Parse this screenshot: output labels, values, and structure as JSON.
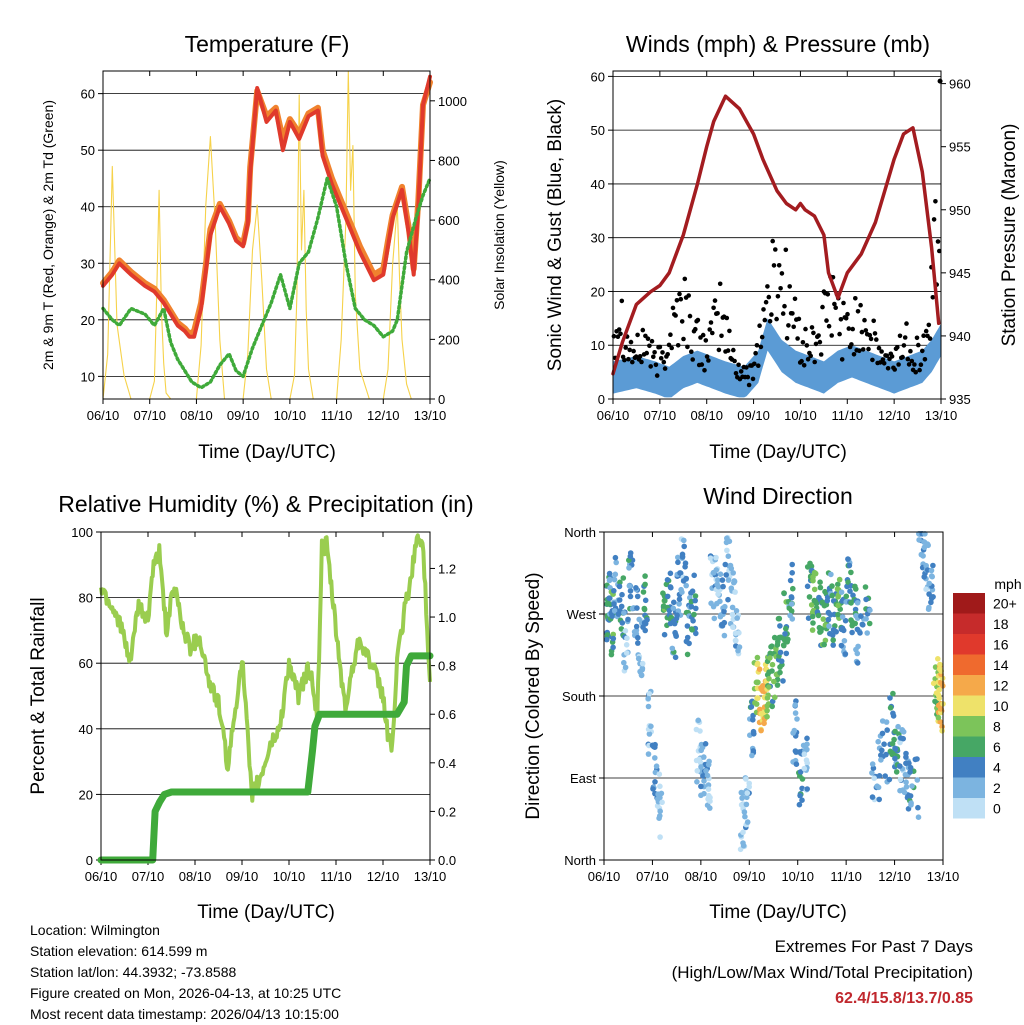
{
  "colors": {
    "temp2m": "#e03a2c",
    "temp9m": "#f0822e",
    "dewpoint": "#3faa3a",
    "solar": "#f6d24a",
    "wind": "#5b9bd5",
    "gust": "#000000",
    "pressure": "#a31c20",
    "rh": "#9acd4f",
    "precip": "#3faa3a"
  },
  "chart_data": [
    {
      "type": "line",
      "id": "temperature",
      "title": "Temperature (F)",
      "xlabel": "Time (Day/UTC)",
      "ylabel": "2m & 9m T (Red, Orange) & 2m Td (Green)",
      "y2label": "Solar Insolation (Yellow)",
      "x_ticks": [
        "06/10",
        "07/10",
        "08/10",
        "09/10",
        "10/10",
        "11/10",
        "12/10",
        "13/10"
      ],
      "xlim": [
        0,
        7
      ],
      "ylim": [
        6,
        64
      ],
      "y_ticks": [
        10,
        20,
        30,
        40,
        50,
        60
      ],
      "y2lim": [
        0,
        1100
      ],
      "y2_ticks": [
        0,
        200,
        400,
        600,
        800,
        1000
      ],
      "series": [
        {
          "name": "2m T",
          "color_key": "temp2m",
          "x": [
            0,
            0.2,
            0.35,
            0.6,
            0.9,
            1.1,
            1.3,
            1.45,
            1.6,
            1.75,
            1.85,
            1.95,
            2.1,
            2.3,
            2.5,
            2.7,
            2.85,
            3.0,
            3.1,
            3.15,
            3.3,
            3.5,
            3.7,
            3.85,
            4.0,
            4.2,
            4.4,
            4.6,
            4.7,
            4.9,
            5.2,
            5.5,
            5.8,
            6.0,
            6.1,
            6.2,
            6.4,
            6.55,
            6.65,
            6.75,
            6.85,
            7.0
          ],
          "y": [
            26,
            28,
            30,
            28,
            26,
            25,
            23,
            21,
            19,
            18,
            17,
            17,
            22,
            35,
            40,
            37,
            34,
            33,
            37,
            46,
            61,
            55,
            57,
            50,
            55,
            52,
            56,
            57,
            49,
            44,
            38,
            32,
            27,
            28,
            33,
            38,
            43,
            35,
            28,
            40,
            58,
            63
          ]
        },
        {
          "name": "9m T",
          "color_key": "temp9m",
          "x": [
            0,
            0.2,
            0.35,
            0.6,
            0.9,
            1.1,
            1.3,
            1.45,
            1.6,
            1.75,
            1.85,
            1.95,
            2.1,
            2.3,
            2.5,
            2.7,
            2.85,
            3.0,
            3.1,
            3.15,
            3.3,
            3.5,
            3.7,
            3.85,
            4.0,
            4.2,
            4.4,
            4.6,
            4.7,
            4.9,
            5.2,
            5.5,
            5.8,
            6.0,
            6.1,
            6.2,
            6.4,
            6.55,
            6.65,
            6.75,
            6.85,
            7.0
          ],
          "y": [
            26.5,
            28.5,
            30.5,
            28.5,
            26.5,
            25.5,
            23.5,
            21.5,
            19.5,
            18.5,
            17.5,
            18,
            23,
            36,
            40.5,
            37.5,
            34.5,
            33.5,
            37.5,
            47,
            60.5,
            56,
            57.5,
            52,
            55.5,
            53,
            56.5,
            57.5,
            50,
            45,
            39,
            33,
            28,
            29,
            34,
            38.5,
            43.5,
            36,
            29,
            41,
            58,
            62
          ]
        },
        {
          "name": "2m Td",
          "color_key": "dewpoint",
          "x": [
            0,
            0.2,
            0.35,
            0.6,
            0.9,
            1.1,
            1.3,
            1.45,
            1.6,
            1.75,
            1.9,
            2.1,
            2.3,
            2.5,
            2.7,
            2.85,
            3.0,
            3.2,
            3.4,
            3.6,
            3.8,
            4.0,
            4.2,
            4.4,
            4.6,
            4.8,
            5.0,
            5.2,
            5.4,
            5.6,
            5.8,
            6.0,
            6.2,
            6.3,
            6.5,
            6.7,
            6.85,
            7.0
          ],
          "y": [
            22,
            20,
            19,
            22,
            21,
            19,
            22,
            16,
            13,
            11,
            9,
            8,
            9,
            12,
            14,
            11,
            10,
            15,
            19,
            23,
            28,
            22,
            30,
            32,
            38,
            45,
            40,
            30,
            22,
            20,
            19,
            17,
            18,
            20,
            32,
            38,
            42,
            45
          ]
        },
        {
          "name": "Solar Insolation",
          "color_key": "solar",
          "axis": "y2",
          "x": [
            0,
            0.1,
            0.2,
            0.3,
            0.45,
            0.6,
            0.8,
            1.0,
            1.1,
            1.15,
            1.2,
            1.25,
            1.3,
            1.35,
            1.45,
            1.6,
            1.8,
            2.0,
            2.1,
            2.2,
            2.3,
            2.4,
            2.5,
            2.6,
            2.8,
            3.0,
            3.1,
            3.2,
            3.3,
            3.4,
            3.5,
            3.6,
            3.8,
            4.0,
            4.1,
            4.15,
            4.2,
            4.25,
            4.3,
            4.35,
            4.4,
            4.5,
            4.7,
            5.0,
            5.1,
            5.2,
            5.25,
            5.3,
            5.35,
            5.4,
            5.5,
            5.7,
            6.0,
            6.1,
            6.2,
            6.3,
            6.35,
            6.4,
            6.5,
            6.6,
            6.8,
            7.0
          ],
          "y": [
            0,
            150,
            780,
            250,
            80,
            0,
            0,
            0,
            60,
            350,
            700,
            300,
            120,
            20,
            0,
            0,
            0,
            0,
            180,
            650,
            880,
            600,
            200,
            0,
            0,
            0,
            150,
            500,
            650,
            400,
            100,
            0,
            0,
            0,
            80,
            350,
            1020,
            500,
            700,
            300,
            100,
            0,
            0,
            0,
            200,
            600,
            1100,
            700,
            850,
            350,
            100,
            0,
            0,
            100,
            450,
            650,
            400,
            200,
            50,
            0,
            0,
            0
          ]
        }
      ]
    },
    {
      "type": "scatter",
      "id": "winds",
      "title": "Winds (mph) & Pressure (mb)",
      "xlabel": "Time (Day/UTC)",
      "ylabel": "Sonic Wind & Gust (Blue, Black)",
      "y2label": "Station Pressure (Maroon)",
      "x_ticks": [
        "06/10",
        "07/10",
        "08/10",
        "09/10",
        "10/10",
        "11/10",
        "12/10",
        "13/10"
      ],
      "xlim": [
        0,
        7
      ],
      "ylim": [
        0,
        61
      ],
      "y_ticks": [
        0,
        10,
        20,
        30,
        40,
        50,
        60
      ],
      "y2lim": [
        935,
        961
      ],
      "y2_ticks": [
        935,
        940,
        945,
        950,
        955,
        960
      ],
      "series": [
        {
          "name": "Sonic Wind",
          "color_key": "wind",
          "x": [
            0,
            0.5,
            0.9,
            1.2,
            1.5,
            1.8,
            2.1,
            2.4,
            2.8,
            3.1,
            3.3,
            3.6,
            3.9,
            4.2,
            4.5,
            4.8,
            5.1,
            5.4,
            5.7,
            6.0,
            6.3,
            6.6,
            6.8,
            7.0
          ],
          "y": [
            4,
            5,
            4,
            3,
            5,
            6,
            5,
            4,
            3,
            6,
            12,
            8,
            6,
            5,
            4,
            6,
            7,
            6,
            5,
            4,
            5,
            6,
            8,
            11
          ]
        },
        {
          "name": "Gust",
          "color_key": "gust",
          "x": [
            0,
            0.15,
            0.3,
            0.5,
            0.7,
            0.9,
            1.1,
            1.3,
            1.5,
            1.7,
            1.9,
            2.1,
            2.3,
            2.5,
            2.7,
            2.9,
            3.1,
            3.3,
            3.5,
            3.7,
            3.9,
            4.1,
            4.3,
            4.5,
            4.7,
            4.9,
            5.1,
            5.3,
            5.5,
            5.7,
            5.9,
            6.1,
            6.3,
            6.5,
            6.7,
            6.85,
            7.0
          ],
          "y": [
            12,
            17,
            10,
            8,
            11,
            6,
            9,
            14,
            18,
            12,
            9,
            11,
            16,
            9,
            5,
            4,
            10,
            18,
            24,
            20,
            13,
            9,
            10,
            14,
            18,
            13,
            12,
            16,
            11,
            8,
            6,
            9,
            11,
            8,
            10,
            25,
            36
          ]
        },
        {
          "name": "Station Pressure",
          "color_key": "pressure",
          "axis": "y2",
          "x": [
            0,
            0.2,
            0.5,
            0.8,
            1.0,
            1.2,
            1.5,
            1.8,
            2.0,
            2.15,
            2.4,
            2.7,
            3.0,
            3.2,
            3.5,
            3.7,
            3.9,
            4.0,
            4.1,
            4.3,
            4.5,
            4.6,
            4.8,
            5.0,
            5.3,
            5.6,
            5.8,
            6.0,
            6.2,
            6.4,
            6.6,
            6.8,
            6.95
          ],
          "y": [
            937,
            939.5,
            942.5,
            943.5,
            944,
            945,
            948,
            952,
            955,
            957,
            959,
            958,
            956,
            954,
            951.5,
            950.5,
            950,
            950.5,
            950,
            949.5,
            948,
            945,
            943,
            945,
            946.5,
            949,
            951.5,
            954,
            956,
            956.5,
            953,
            947,
            941
          ]
        }
      ]
    },
    {
      "type": "line",
      "id": "humidity",
      "title": "Relative Humidity (%) & Precipitation (in)",
      "xlabel": "Time (Day/UTC)",
      "ylabel": "Percent & Total Rainfall",
      "x_ticks": [
        "06/10",
        "07/10",
        "08/10",
        "09/10",
        "10/10",
        "11/10",
        "12/10",
        "13/10"
      ],
      "xlim": [
        0,
        7
      ],
      "ylim": [
        0,
        100
      ],
      "y_ticks": [
        0,
        20,
        40,
        60,
        80,
        100
      ],
      "y2lim": [
        0,
        1.35
      ],
      "y2_ticks": [
        "0.0",
        "0.2",
        "0.4",
        "0.6",
        "0.8",
        "1.0",
        "1.2"
      ],
      "series": [
        {
          "name": "Relative Humidity",
          "color_key": "rh",
          "x": [
            0,
            0.2,
            0.4,
            0.6,
            0.8,
            1.0,
            1.1,
            1.25,
            1.4,
            1.5,
            1.6,
            1.75,
            1.9,
            2.1,
            2.3,
            2.5,
            2.7,
            2.85,
            3.0,
            3.1,
            3.2,
            3.4,
            3.6,
            3.8,
            4.0,
            4.2,
            4.4,
            4.5,
            4.6,
            4.7,
            4.8,
            5.0,
            5.2,
            5.3,
            5.5,
            5.8,
            6.0,
            6.1,
            6.2,
            6.3,
            6.5,
            6.6,
            6.7,
            6.85,
            7.0
          ],
          "y": [
            83,
            78,
            73,
            60,
            77,
            73,
            88,
            94,
            68,
            80,
            82,
            70,
            65,
            68,
            54,
            48,
            28,
            45,
            62,
            42,
            20,
            25,
            35,
            40,
            60,
            50,
            58,
            55,
            42,
            95,
            96,
            70,
            45,
            55,
            68,
            58,
            50,
            38,
            35,
            60,
            80,
            85,
            98,
            96,
            55
          ]
        },
        {
          "name": "Total Precipitation",
          "color_key": "precip",
          "axis": "y2",
          "x": [
            0,
            1.1,
            1.15,
            1.25,
            1.35,
            1.5,
            2.0,
            2.5,
            3.0,
            3.5,
            4.0,
            4.4,
            4.5,
            4.55,
            4.65,
            5.0,
            5.5,
            6.0,
            6.3,
            6.45,
            6.5,
            6.6,
            7.0
          ],
          "y": [
            0,
            0,
            0.2,
            0.24,
            0.27,
            0.28,
            0.28,
            0.28,
            0.28,
            0.28,
            0.28,
            0.28,
            0.45,
            0.55,
            0.6,
            0.6,
            0.6,
            0.6,
            0.6,
            0.65,
            0.8,
            0.84,
            0.84
          ]
        }
      ]
    },
    {
      "type": "scatter",
      "id": "wind_direction",
      "title": "Wind Direction",
      "xlabel": "Time (Day/UTC)",
      "ylabel": "Direction (Colored By Speed)",
      "x_ticks": [
        "06/10",
        "07/10",
        "08/10",
        "09/10",
        "10/10",
        "11/10",
        "12/10",
        "13/10"
      ],
      "xlim": [
        0,
        7
      ],
      "ylim": [
        0,
        360
      ],
      "y_ticks": [
        {
          "value": 0,
          "label": "North"
        },
        {
          "value": 90,
          "label": "East"
        },
        {
          "value": 180,
          "label": "South"
        },
        {
          "value": 270,
          "label": "West"
        },
        {
          "value": 360,
          "label": "North"
        }
      ],
      "legend": {
        "title": "mph",
        "labels": [
          "20+",
          "18",
          "16",
          "14",
          "12",
          "10",
          "8",
          "6",
          "4",
          "2",
          "0"
        ],
        "colors": [
          "#a01a1a",
          "#c62b2b",
          "#e0392c",
          "#ef6a2e",
          "#f5a94a",
          "#eee26a",
          "#7cc45a",
          "#46a765",
          "#4180c2",
          "#7cb4e0",
          "#bfe0f5"
        ]
      },
      "x": [
        0.05,
        0.1,
        0.15,
        0.2,
        0.3,
        0.4,
        0.5,
        0.6,
        0.7,
        0.8,
        0.9,
        1.0,
        1.1,
        1.2,
        1.3,
        1.4,
        1.5,
        1.6,
        1.7,
        1.8,
        1.9,
        2.0,
        2.1,
        2.2,
        2.3,
        2.4,
        2.5,
        2.6,
        2.7,
        2.8,
        2.9,
        3.0,
        3.1,
        3.2,
        3.3,
        3.35,
        3.4,
        3.5,
        3.6,
        3.7,
        3.8,
        3.9,
        4.0,
        4.1,
        4.2,
        4.3,
        4.4,
        4.5,
        4.6,
        4.7,
        4.8,
        4.9,
        5.0,
        5.1,
        5.2,
        5.3,
        5.5,
        5.7,
        5.9,
        6.0,
        6.1,
        6.2,
        6.3,
        6.5,
        6.6,
        6.7,
        6.8,
        6.9,
        6.95,
        7.0
      ],
      "directions": [
        270,
        285,
        260,
        300,
        275,
        240,
        310,
        265,
        230,
        280,
        150,
        100,
        60,
        270,
        280,
        250,
        300,
        320,
        260,
        280,
        120,
        100,
        80,
        300,
        310,
        280,
        320,
        290,
        260,
        40,
        60,
        140,
        190,
        175,
        180,
        190,
        200,
        210,
        230,
        260,
        290,
        140,
        90,
        110,
        300,
        285,
        270,
        265,
        280,
        270,
        290,
        260,
        300,
        270,
        250,
        275,
        100,
        120,
        150,
        130,
        110,
        90,
        80,
        350,
        330,
        310,
        190,
        185,
        175,
        180
      ],
      "speeds": [
        6,
        5,
        7,
        4,
        6,
        3,
        5,
        4,
        2,
        6,
        3,
        4,
        2,
        7,
        6,
        5,
        4,
        3,
        5,
        6,
        2,
        4,
        3,
        3,
        2,
        4,
        3,
        2,
        3,
        2,
        3,
        5,
        10,
        12,
        11,
        9,
        7,
        8,
        6,
        7,
        5,
        4,
        5,
        3,
        7,
        8,
        6,
        7,
        5,
        6,
        8,
        4,
        5,
        6,
        4,
        5,
        3,
        4,
        6,
        5,
        3,
        4,
        5,
        4,
        3,
        4,
        9,
        11,
        12,
        10
      ]
    }
  ],
  "info": {
    "location": "Location: Wilmington",
    "elevation": "Station elevation: 614.599 m",
    "latlon": "Station lat/lon: 44.3932; -73.8588",
    "created": "Figure created on Mon, 2026-04-13, at 10:25 UTC",
    "timestamp": "Most recent data timestamp: 2026/04/13 10:15:00"
  },
  "extremes": {
    "title": "Extremes For Past 7 Days",
    "subtitle": "(High/Low/Max Wind/Total Precipitation)",
    "values": "62.4/15.8/13.7/0.85"
  }
}
